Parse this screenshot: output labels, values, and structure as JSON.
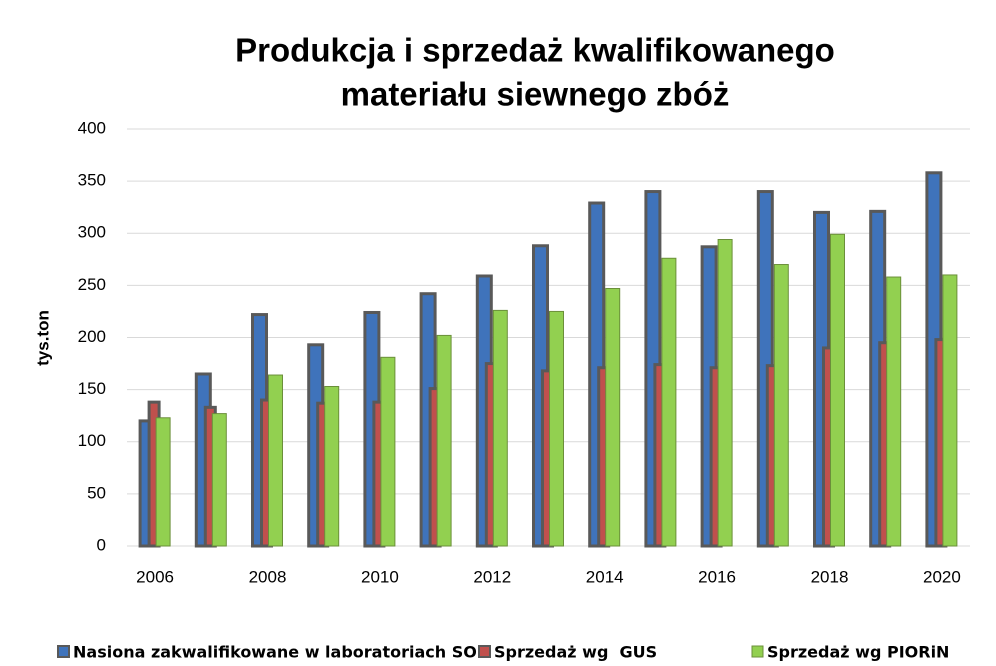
{
  "chart_data": {
    "type": "bar",
    "title": [
      "Produkcja i sprzedaż kwalifikowanego",
      "materiału siewnego zbóż"
    ],
    "y_label": "tys.ton",
    "categories": [
      "2006",
      null,
      "2008",
      null,
      "2010",
      null,
      "2012",
      null,
      "2014",
      null,
      "2016",
      null,
      "2018",
      null,
      "2020"
    ],
    "series": [
      {
        "name": "Nasiona zakwalifikowane w laboratoriach SON",
        "color": "#3f73bb",
        "values": [
          120,
          165,
          222,
          193,
          224,
          242,
          259,
          288,
          329,
          340,
          287,
          340,
          320,
          321,
          358
        ]
      },
      {
        "name": "Sprzedaż wg  GUS",
        "color": "#c0504d",
        "values": [
          138,
          133,
          140,
          137,
          138,
          151,
          175,
          168,
          171,
          174,
          171,
          173,
          190,
          195,
          198
        ]
      },
      {
        "name": "Sprzedaż wg PIORiN",
        "color": "#92d050",
        "values": [
          123,
          127,
          164,
          153,
          181,
          202,
          226,
          225,
          247,
          276,
          294,
          270,
          299,
          258,
          260
        ]
      }
    ],
    "ylim": [
      0,
      400
    ],
    "yticks": [
      0,
      50,
      100,
      150,
      200,
      250,
      300,
      350,
      400
    ],
    "grid": true,
    "legend": "bottom"
  }
}
